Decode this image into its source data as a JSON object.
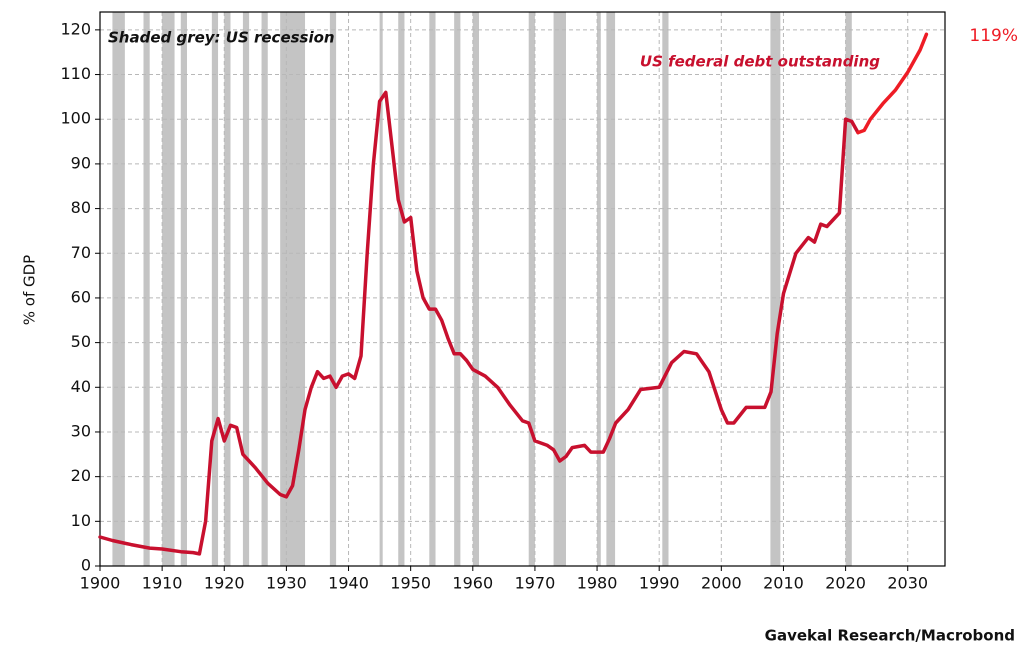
{
  "chart_data": {
    "type": "line",
    "y_label": "% of GDP",
    "annotations": {
      "recession_note": "Shaded grey: US recession",
      "series_note": "US federal debt outstanding",
      "end_label": "119%"
    },
    "source": "Gavekal Research/Macrobond",
    "xlim": [
      1900,
      2036
    ],
    "ylim": [
      0,
      124
    ],
    "xticks": [
      1900,
      1910,
      1920,
      1930,
      1940,
      1950,
      1960,
      1970,
      1980,
      1990,
      2000,
      2010,
      2020,
      2030
    ],
    "yticks": [
      0,
      10,
      20,
      30,
      40,
      50,
      60,
      70,
      80,
      90,
      100,
      110,
      120
    ],
    "grid": true,
    "recession_color": "#c4c4c4",
    "recessions": [
      [
        1902,
        1904
      ],
      [
        1907,
        1908
      ],
      [
        1910,
        1912
      ],
      [
        1913,
        1914
      ],
      [
        1918,
        1919
      ],
      [
        1920,
        1921
      ],
      [
        1923,
        1924
      ],
      [
        1926,
        1927
      ],
      [
        1929,
        1933
      ],
      [
        1937,
        1938
      ],
      [
        1945,
        1945.5
      ],
      [
        1948,
        1949
      ],
      [
        1953,
        1954
      ],
      [
        1957,
        1958
      ],
      [
        1960,
        1961
      ],
      [
        1969,
        1970
      ],
      [
        1973,
        1975
      ],
      [
        1980,
        1980.6
      ],
      [
        1981.5,
        1982.9
      ],
      [
        1990.5,
        1991.5
      ],
      [
        2007.9,
        2009.5
      ],
      [
        2020,
        2021
      ]
    ],
    "series": [
      {
        "color": "#c8102e",
        "x": [
          1900,
          1902,
          1905,
          1908,
          1910,
          1913,
          1915,
          1916,
          1917,
          1918,
          1919,
          1920,
          1921,
          1922,
          1923,
          1925,
          1927,
          1929,
          1930,
          1931,
          1932,
          1933,
          1934,
          1935,
          1936,
          1937,
          1938,
          1939,
          1940,
          1941,
          1942,
          1943,
          1944,
          1945,
          1946,
          1947,
          1948,
          1949,
          1950,
          1951,
          1952,
          1953,
          1954,
          1955,
          1956,
          1957,
          1958,
          1959,
          1960,
          1962,
          1964,
          1966,
          1968,
          1969,
          1970,
          1972,
          1973,
          1974,
          1975,
          1976,
          1978,
          1979,
          1980,
          1981,
          1982,
          1983,
          1985,
          1987,
          1990,
          1992,
          1994,
          1996,
          1998,
          2000,
          2001,
          2002,
          2004,
          2006,
          2007,
          2008,
          2009,
          2010,
          2012,
          2014,
          2015,
          2016,
          2017,
          2019,
          2020,
          2021,
          2022
        ],
        "values": [
          6.5,
          5.7,
          4.8,
          4,
          3.8,
          3.2,
          3,
          2.7,
          10,
          28,
          33,
          28,
          31.5,
          31,
          25,
          22,
          18.5,
          16,
          15.5,
          18,
          26,
          35,
          40,
          43.5,
          42,
          42.5,
          40,
          42.5,
          43,
          42,
          47,
          70,
          90,
          104,
          106,
          94,
          82,
          77,
          78,
          66,
          60,
          57.5,
          57.5,
          55,
          51,
          47.5,
          47.5,
          46,
          44,
          42.5,
          40,
          36,
          32.5,
          32,
          28,
          27,
          26,
          23.5,
          24.5,
          26.5,
          27,
          25.5,
          25.5,
          25.5,
          28.5,
          32,
          35,
          39.5,
          40,
          45.5,
          48,
          47.5,
          43.5,
          35,
          32,
          32,
          35.5,
          35.5,
          35.5,
          39,
          52,
          61,
          70,
          73.5,
          72.5,
          76.5,
          76,
          79,
          100,
          99.5,
          97
        ]
      },
      {
        "color": "#ee1c25",
        "x": [
          2022,
          2023,
          2024,
          2026,
          2028,
          2030,
          2032,
          2033
        ],
        "values": [
          97,
          97.5,
          100,
          103.5,
          106.5,
          110.5,
          115.5,
          119
        ]
      }
    ]
  }
}
